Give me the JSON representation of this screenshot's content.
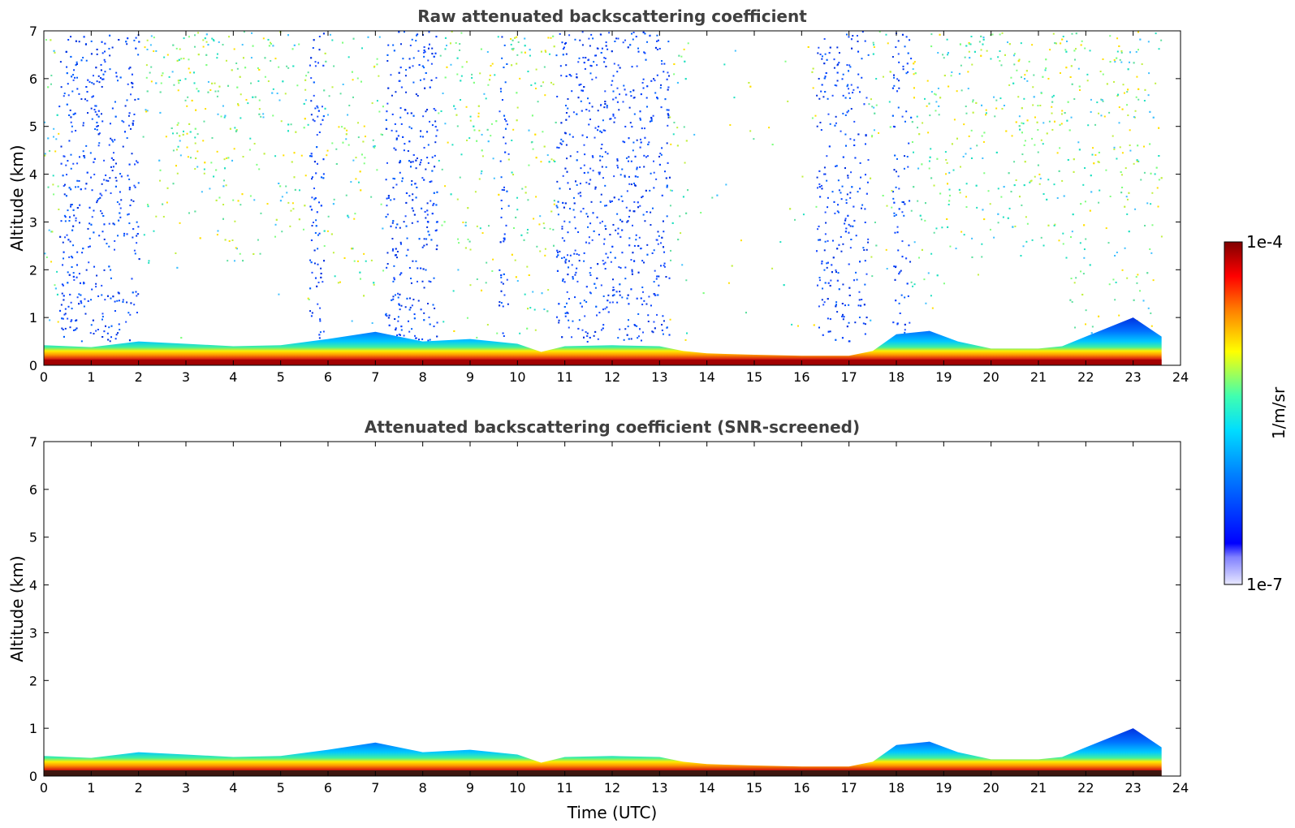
{
  "chart_data": [
    {
      "type": "heatmap",
      "title": "Raw attenuated backscattering coefficient",
      "xlabel": "",
      "ylabel": "Altitude (km)",
      "xlim": [
        0,
        24
      ],
      "ylim": [
        0,
        7
      ],
      "x_ticks": [
        "0",
        "1",
        "2",
        "3",
        "4",
        "5",
        "6",
        "7",
        "8",
        "9",
        "10",
        "11",
        "12",
        "13",
        "14",
        "15",
        "16",
        "17",
        "18",
        "19",
        "20",
        "21",
        "22",
        "23",
        "24"
      ],
      "y_ticks": [
        "0",
        "1",
        "2",
        "3",
        "4",
        "5",
        "6",
        "7"
      ],
      "data_end_time": 23.6,
      "boundary_layer_top_km": [
        [
          0,
          0.42
        ],
        [
          1,
          0.38
        ],
        [
          2,
          0.5
        ],
        [
          3,
          0.45
        ],
        [
          4,
          0.4
        ],
        [
          5,
          0.42
        ],
        [
          6,
          0.55
        ],
        [
          7,
          0.7
        ],
        [
          8,
          0.5
        ],
        [
          9,
          0.55
        ],
        [
          10,
          0.45
        ],
        [
          10.5,
          0.28
        ],
        [
          11,
          0.4
        ],
        [
          12,
          0.42
        ],
        [
          13,
          0.4
        ],
        [
          13.5,
          0.3
        ],
        [
          14,
          0.25
        ],
        [
          15,
          0.22
        ],
        [
          16,
          0.2
        ],
        [
          17,
          0.2
        ],
        [
          17.5,
          0.3
        ],
        [
          18,
          0.65
        ],
        [
          18.7,
          0.72
        ],
        [
          19.3,
          0.5
        ],
        [
          20,
          0.35
        ],
        [
          21,
          0.35
        ],
        [
          21.5,
          0.4
        ],
        [
          22,
          0.6
        ],
        [
          22.5,
          0.8
        ],
        [
          23,
          1.0
        ],
        [
          23.6,
          0.6
        ]
      ],
      "clear_air_signal_periods_utc": [
        [
          0.3,
          2.0
        ],
        [
          5.6,
          5.9
        ],
        [
          7.2,
          8.3
        ],
        [
          9.6,
          9.8
        ],
        [
          10.8,
          13.2
        ],
        [
          16.3,
          17.4
        ],
        [
          17.9,
          18.3
        ]
      ]
    },
    {
      "type": "heatmap",
      "title": "Attenuated backscattering coefficient (SNR-screened)",
      "xlabel": "Time (UTC)",
      "ylabel": "Altitude (km)",
      "xlim": [
        0,
        24
      ],
      "ylim": [
        0,
        7
      ],
      "x_ticks": [
        "0",
        "1",
        "2",
        "3",
        "4",
        "5",
        "6",
        "7",
        "8",
        "9",
        "10",
        "11",
        "12",
        "13",
        "14",
        "15",
        "16",
        "17",
        "18",
        "19",
        "20",
        "21",
        "22",
        "23",
        "24"
      ],
      "y_ticks": [
        "0",
        "1",
        "2",
        "3",
        "4",
        "5",
        "6",
        "7"
      ],
      "data_end_time": 23.6
    }
  ],
  "colorbar": {
    "label": "1/m/sr",
    "max_label": "1e-4",
    "min_label": "1e-7",
    "scale": "log",
    "colormap": "jet"
  }
}
